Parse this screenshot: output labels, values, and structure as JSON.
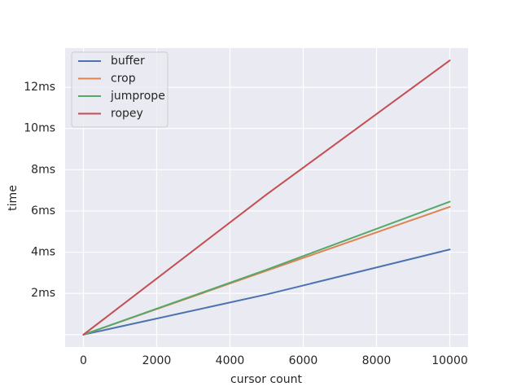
{
  "chart_data": {
    "type": "line",
    "xlabel": "cursor count",
    "ylabel": "time",
    "x": [
      0,
      5000,
      10000
    ],
    "series": [
      {
        "name": "buffer",
        "color": "#4c72b0",
        "values": [
          0,
          1.95,
          4.13
        ]
      },
      {
        "name": "crop",
        "color": "#dd8452",
        "values": [
          0,
          3.1,
          6.2
        ]
      },
      {
        "name": "jumprope",
        "color": "#55a868",
        "values": [
          0,
          3.15,
          6.45
        ]
      },
      {
        "name": "ropey",
        "color": "#c44e52",
        "values": [
          0,
          6.8,
          13.3
        ]
      }
    ],
    "xlim": [
      -500,
      10500
    ],
    "xticks": [
      0,
      2000,
      4000,
      6000,
      8000,
      10000
    ],
    "ylim": [
      -0.6,
      13.9
    ],
    "yticks": [
      {
        "value": 0,
        "label": null
      },
      {
        "value": 2,
        "label": "2ms"
      },
      {
        "value": 4,
        "label": "4ms"
      },
      {
        "value": 6,
        "label": "6ms"
      },
      {
        "value": 8,
        "label": "8ms"
      },
      {
        "value": 10,
        "label": "10ms"
      },
      {
        "value": 12,
        "label": "12ms"
      }
    ],
    "grid": true,
    "legend": "upper left"
  }
}
